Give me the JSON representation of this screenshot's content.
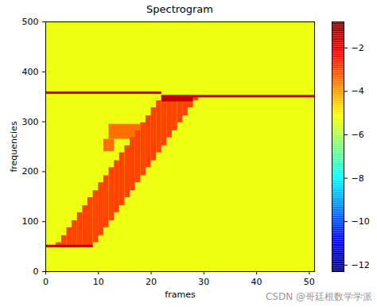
{
  "chart_data": {
    "type": "heatmap",
    "title": "Spectrogram",
    "x_label": "frames",
    "y_label": "frequencies",
    "xlim": [
      0,
      51
    ],
    "xticks": [
      0,
      10,
      20,
      30,
      40,
      50
    ],
    "ylim": [
      0,
      500
    ],
    "yticks": [
      0,
      100,
      200,
      300,
      400,
      500
    ],
    "cells": [
      {
        "x0": 0,
        "x1": 51,
        "y0": 0,
        "y1": 500,
        "value": -5.3
      },
      {
        "x0": 11,
        "x1": 13,
        "y0": 240,
        "y1": 265,
        "value": -3.5
      },
      {
        "x0": 12,
        "x1": 18,
        "y0": 265,
        "y1": 295,
        "value": -3.5
      },
      {
        "x0": 2,
        "x1": 3,
        "y0": 50,
        "y1": 58,
        "value": -3
      },
      {
        "x0": 3,
        "x1": 4,
        "y0": 50,
        "y1": 72,
        "value": -3
      },
      {
        "x0": 4,
        "x1": 5,
        "y0": 50,
        "y1": 88,
        "value": -3
      },
      {
        "x0": 5,
        "x1": 6,
        "y0": 50,
        "y1": 102,
        "value": -3
      },
      {
        "x0": 6,
        "x1": 7,
        "y0": 50,
        "y1": 118,
        "value": -3
      },
      {
        "x0": 7,
        "x1": 8,
        "y0": 50,
        "y1": 132,
        "value": -3
      },
      {
        "x0": 8,
        "x1": 9,
        "y0": 50,
        "y1": 148,
        "value": -3
      },
      {
        "x0": 9,
        "x1": 10,
        "y0": 58,
        "y1": 162,
        "value": -3
      },
      {
        "x0": 10,
        "x1": 11,
        "y0": 72,
        "y1": 178,
        "value": -3
      },
      {
        "x0": 11,
        "x1": 12,
        "y0": 88,
        "y1": 192,
        "value": -3
      },
      {
        "x0": 12,
        "x1": 13,
        "y0": 102,
        "y1": 208,
        "value": -3
      },
      {
        "x0": 13,
        "x1": 14,
        "y0": 118,
        "y1": 222,
        "value": -3
      },
      {
        "x0": 14,
        "x1": 15,
        "y0": 132,
        "y1": 238,
        "value": -3
      },
      {
        "x0": 15,
        "x1": 16,
        "y0": 148,
        "y1": 252,
        "value": -3
      },
      {
        "x0": 16,
        "x1": 17,
        "y0": 162,
        "y1": 268,
        "value": -3
      },
      {
        "x0": 17,
        "x1": 18,
        "y0": 178,
        "y1": 282,
        "value": -3
      },
      {
        "x0": 18,
        "x1": 19,
        "y0": 192,
        "y1": 298,
        "value": -3
      },
      {
        "x0": 19,
        "x1": 20,
        "y0": 208,
        "y1": 312,
        "value": -3
      },
      {
        "x0": 20,
        "x1": 21,
        "y0": 222,
        "y1": 328,
        "value": -3
      },
      {
        "x0": 21,
        "x1": 22,
        "y0": 238,
        "y1": 342,
        "value": -3
      },
      {
        "x0": 22,
        "x1": 23,
        "y0": 252,
        "y1": 350,
        "value": -3
      },
      {
        "x0": 23,
        "x1": 24,
        "y0": 268,
        "y1": 350,
        "value": -3
      },
      {
        "x0": 24,
        "x1": 25,
        "y0": 282,
        "y1": 350,
        "value": -3
      },
      {
        "x0": 25,
        "x1": 26,
        "y0": 298,
        "y1": 350,
        "value": -3
      },
      {
        "x0": 26,
        "x1": 27,
        "y0": 312,
        "y1": 350,
        "value": -3
      },
      {
        "x0": 27,
        "x1": 28,
        "y0": 328,
        "y1": 350,
        "value": -3
      },
      {
        "x0": 28,
        "x1": 29,
        "y0": 342,
        "y1": 350,
        "value": -3
      },
      {
        "x0": 22,
        "x1": 28,
        "y0": 340,
        "y1": 352,
        "value": -1.5
      },
      {
        "x0": 0,
        "x1": 9,
        "y0": 48,
        "y1": 53,
        "value": -1.5
      },
      {
        "x0": 0,
        "x1": 22,
        "y0": 355,
        "y1": 360,
        "value": -1.8
      },
      {
        "x0": 22,
        "x1": 51,
        "y0": 348,
        "y1": 353,
        "value": -1.5
      }
    ],
    "colorbar": {
      "range": [
        -12.3,
        -0.8
      ],
      "ticks": [
        -12,
        -10,
        -8,
        -6,
        -4,
        -2
      ]
    },
    "annotations": [
      "CSDN @哥廷根数学学派"
    ]
  }
}
